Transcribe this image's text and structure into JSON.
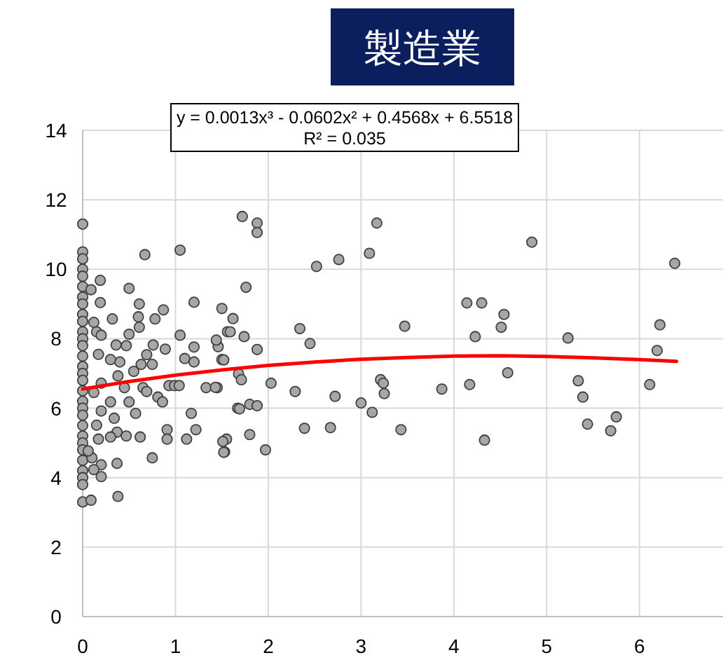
{
  "chart_data": {
    "type": "scatter",
    "title": "製造業",
    "annotations": [
      "y = 0.0013x³ - 0.0602x² + 0.4568x + 6.5518",
      "R² = 0.035"
    ],
    "xlim": [
      0,
      6.9
    ],
    "ylim": [
      0,
      14
    ],
    "xticks": [
      0,
      1,
      2,
      3,
      4,
      5,
      6
    ],
    "yticks": [
      0,
      2,
      4,
      6,
      8,
      10,
      12,
      14
    ],
    "grid": true,
    "series": [
      {
        "marker": "circle",
        "color": "#a6a6a6",
        "x": [
          0,
          0,
          0,
          0,
          0,
          0,
          0,
          0,
          0,
          0,
          0,
          0,
          0,
          0,
          0,
          0,
          0,
          0,
          0,
          0,
          0,
          0,
          0,
          0,
          0,
          0,
          0,
          0,
          0,
          0,
          0.09,
          0.38,
          0.67,
          0.19,
          0.5,
          0.09,
          0.19,
          0.61,
          0.87,
          0.78,
          0.6,
          0.32,
          0.12,
          0.15,
          0.5,
          0.61,
          0.2,
          0.36,
          0.47,
          0.17,
          0.76,
          0.69,
          0.89,
          0.4,
          0.3,
          0.63,
          0.75,
          0.55,
          0.38,
          0.2,
          0.45,
          0.65,
          0.12,
          0.3,
          0.5,
          0.69,
          0.81,
          0.86,
          0.93,
          0.2,
          0.34,
          0.57,
          0.15,
          0.37,
          0.17,
          0.47,
          0.62,
          0.3,
          0.75,
          0.37,
          0.2,
          0.12,
          0.2,
          0.1,
          0.06,
          1.05,
          1.05,
          1.2,
          1.2,
          1.1,
          1.2,
          1.5,
          1.56,
          1.46,
          1.5,
          0.99,
          1.04,
          1.33,
          1.45,
          1.17,
          1.22,
          0.91,
          0.91,
          1.12,
          1.55,
          1.53,
          1.67,
          1.72,
          1.88,
          1.88,
          3.17,
          3.09,
          2.76,
          2.52,
          1.76,
          1.62,
          1.59,
          1.74,
          1.44,
          1.88,
          2.34,
          2.45,
          3.47,
          1.52,
          1.68,
          1.71,
          1.43,
          2.03,
          2.29,
          2.72,
          3.0,
          3.12,
          3.21,
          3.24,
          3.25,
          3.87,
          1.69,
          1.8,
          1.88,
          2.39,
          2.67,
          3.43,
          1.8,
          1.51,
          1.52,
          1.97,
          4.14,
          4.17,
          4.84,
          4.3,
          4.54,
          4.51,
          4.23,
          4.58,
          4.33,
          5.23,
          5.34,
          5.39,
          5.75,
          5.44,
          5.69,
          6.11,
          6.19,
          6.22,
          6.38
        ],
        "values": [
          11.3,
          10.5,
          10.3,
          10.0,
          9.8,
          9.5,
          9.2,
          9.0,
          8.7,
          8.5,
          8.2,
          8.0,
          7.8,
          7.5,
          7.2,
          7.0,
          6.8,
          6.5,
          6.2,
          6.0,
          5.8,
          5.5,
          5.2,
          5.0,
          4.8,
          4.5,
          4.2,
          4.0,
          3.8,
          3.3,
          3.35,
          3.46,
          10.42,
          9.68,
          9.45,
          9.41,
          9.04,
          9.0,
          8.83,
          8.57,
          8.63,
          8.57,
          8.47,
          8.2,
          8.13,
          8.33,
          8.1,
          7.82,
          7.8,
          7.55,
          7.82,
          7.54,
          7.7,
          7.33,
          7.4,
          7.26,
          7.26,
          7.06,
          6.93,
          6.72,
          6.59,
          6.59,
          6.45,
          6.18,
          6.18,
          6.48,
          6.32,
          6.18,
          6.65,
          5.92,
          5.71,
          5.85,
          5.51,
          5.31,
          5.11,
          5.2,
          5.17,
          5.17,
          4.57,
          4.41,
          4.37,
          4.23,
          4.03,
          4.57,
          4.77,
          10.55,
          8.1,
          9.05,
          7.76,
          7.43,
          7.33,
          8.87,
          8.2,
          7.77,
          7.4,
          6.65,
          6.65,
          6.59,
          6.59,
          5.85,
          5.38,
          5.38,
          5.11,
          5.11,
          5.11,
          4.74,
          6.0,
          11.52,
          11.33,
          11.06,
          11.33,
          10.46,
          10.28,
          10.08,
          9.48,
          8.58,
          8.2,
          8.06,
          7.96,
          7.69,
          8.29,
          7.86,
          8.36,
          7.39,
          6.99,
          6.82,
          6.6,
          6.72,
          6.48,
          6.34,
          6.15,
          5.88,
          6.82,
          6.72,
          6.42,
          6.55,
          5.98,
          6.11,
          6.07,
          5.42,
          5.44,
          5.38,
          5.24,
          5.04,
          4.73,
          4.8,
          9.03,
          6.68,
          10.78,
          9.03,
          8.7,
          8.33,
          8.06,
          7.02,
          5.08,
          8.02,
          6.79,
          6.32,
          5.75,
          5.54,
          5.35,
          6.68,
          7.66,
          8.4,
          10.17
        ]
      },
      {
        "type": "line",
        "marker": "none",
        "color": "#ff0000",
        "x": [
          0,
          0.5,
          1,
          1.5,
          2,
          2.5,
          3,
          3.5,
          4,
          4.5,
          5,
          5.5,
          6,
          6.4
        ],
        "values": [
          6.55,
          6.77,
          6.95,
          7.1,
          7.23,
          7.33,
          7.41,
          7.46,
          7.5,
          7.51,
          7.49,
          7.45,
          7.4,
          7.35
        ]
      }
    ]
  }
}
